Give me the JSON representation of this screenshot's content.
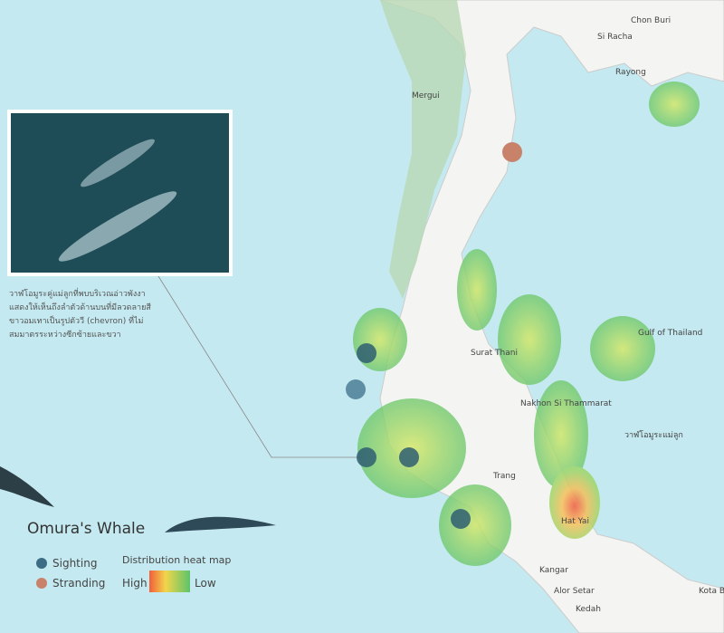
{
  "title": "Omura's Whale",
  "caption": "วาฬโอมูระคู่แม่ลูกที่พบบริเวณอ่าวพังงา แสดงให้เห็นถึงลำตัวด้านบนที่มีลวดลายสีขาวอมเทาเป็นรูปตัววี (chevron) ที่ไม่สมมาตรระหว่างซีกซ้ายและขวา",
  "legend": {
    "sighting": "Sighting",
    "stranding": "Stranding",
    "heatmap_title": "Distribution heat map",
    "high": "High",
    "low": "Low"
  },
  "places": [
    "Chon Buri",
    "Si Racha",
    "Rayong",
    "Mergui",
    "Gulf of Thailand",
    "Surat Thani",
    "Nakhon Si Thammarat",
    "Trang",
    "Hat Yai",
    "Kangar",
    "Alor Setar",
    "Kedah",
    "Kota Bh",
    "วาฬโอมูระแม่ลูก"
  ]
}
